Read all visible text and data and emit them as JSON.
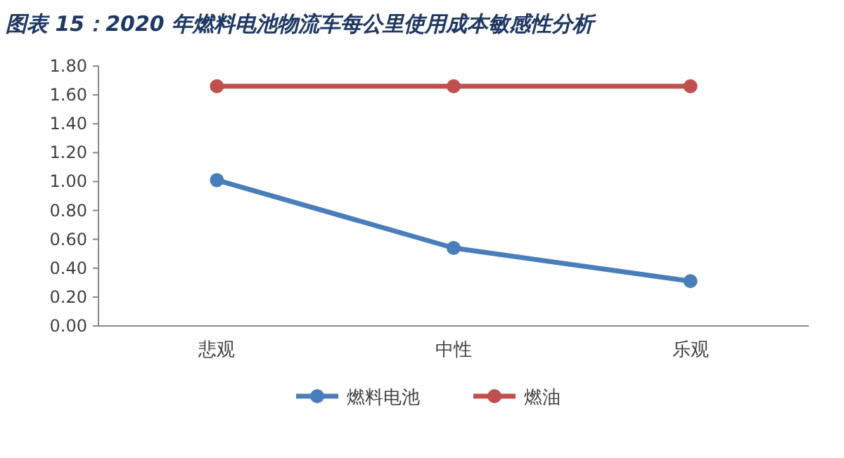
{
  "chart_data": {
    "type": "line",
    "title": "图表 15：2020 年燃料电池物流车每公里使用成本敏感性分析",
    "categories": [
      "悲观",
      "中性",
      "乐观"
    ],
    "series": [
      {
        "name": "燃料电池",
        "color": "#4a7ebb",
        "values": [
          1.01,
          0.54,
          0.31
        ]
      },
      {
        "name": "燃油",
        "color": "#c0504d",
        "values": [
          1.66,
          1.66,
          1.66
        ]
      }
    ],
    "ylim": [
      0,
      1.8
    ],
    "yticks": [
      {
        "value": 0,
        "label": "0.00"
      },
      {
        "value": 0.2,
        "label": "0.20"
      },
      {
        "value": 0.4,
        "label": "0.40"
      },
      {
        "value": 0.6,
        "label": "0.60"
      },
      {
        "value": 0.8,
        "label": "0.80"
      },
      {
        "value": 1.0,
        "label": "1.00"
      },
      {
        "value": 1.2,
        "label": "1.20"
      },
      {
        "value": 1.4,
        "label": "1.40"
      },
      {
        "value": 1.6,
        "label": "1.60"
      },
      {
        "value": 1.8,
        "label": "1.80"
      }
    ],
    "marker": "circle",
    "line_style": "solid",
    "legend": "bottom",
    "grid": false
  }
}
